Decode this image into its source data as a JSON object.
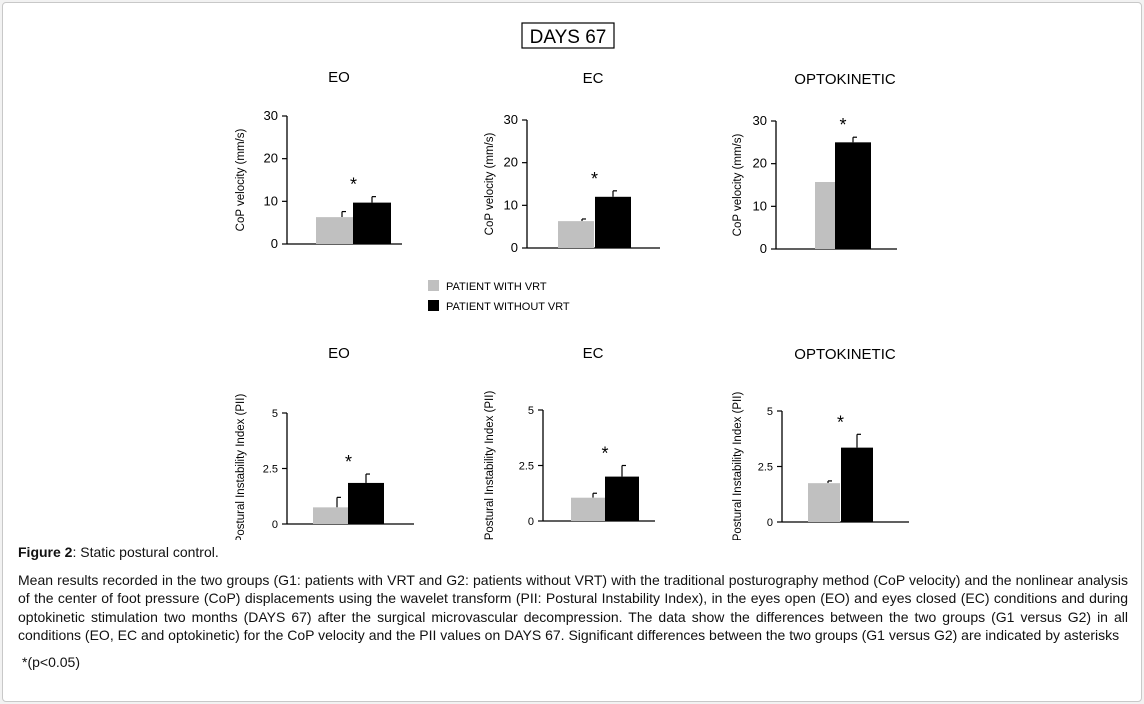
{
  "figure": {
    "header": "DAYS 67",
    "caption_label": "Figure 2",
    "caption_title": ": Static postural control.",
    "caption_body": "Mean results recorded in the two groups (G1: patients with VRT and G2: patients without VRT) with the traditional posturography method (CoP velocity) and the nonlinear analysis of the center of foot pressure (CoP) displacements using the wavelet transform (PII: Postural Instability Index), in the eyes open (EO) and eyes closed (EC) conditions and during optokinetic stimulation two months (DAYS 67) after the surgical microvascular decompression. The data show the differences between the two groups (G1 versus G2) in all conditions (EO, EC and optokinetic) for the CoP velocity and the PII values on DAYS 67. Significant differences between the two groups (G1 versus G2) are indicated by asterisks",
    "caption_note": "*(p<0.05)"
  },
  "legend": [
    {
      "label": "PATIENT WITH VRT",
      "color": "#c0c0c0"
    },
    {
      "label": "PATIENT WITHOUT VRT",
      "color": "#000000"
    }
  ],
  "chart_data": [
    {
      "type": "bar",
      "title": "EO",
      "ylabel": "CoP velocity (mm/s)",
      "ylim": [
        0,
        30
      ],
      "ticks": [
        "0",
        "10",
        "20",
        "30"
      ],
      "series": [
        {
          "name": "PATIENT WITH VRT",
          "values": [
            6.3
          ],
          "errors": [
            1.3
          ]
        },
        {
          "name": "PATIENT WITHOUT VRT",
          "values": [
            9.7
          ],
          "errors": [
            1.4
          ]
        }
      ],
      "annotation": "*"
    },
    {
      "type": "bar",
      "title": "EC",
      "ylabel": "CoP velocity (mm/s)",
      "ylim": [
        0,
        30
      ],
      "ticks": [
        "0",
        "10",
        "20",
        "30"
      ],
      "series": [
        {
          "name": "PATIENT WITH VRT",
          "values": [
            6.3
          ],
          "errors": [
            0.5
          ]
        },
        {
          "name": "PATIENT WITHOUT VRT",
          "values": [
            12.0
          ],
          "errors": [
            1.4
          ]
        }
      ],
      "annotation": "*"
    },
    {
      "type": "bar",
      "title": "OPTOKINETIC",
      "ylabel": "CoP velocity (mm/s)",
      "ylim": [
        0,
        30
      ],
      "ticks": [
        "0",
        "10",
        "20",
        "30"
      ],
      "series": [
        {
          "name": "PATIENT WITH VRT",
          "values": [
            15.7
          ],
          "errors": [
            1.2
          ]
        },
        {
          "name": "PATIENT WITHOUT VRT",
          "values": [
            25.0
          ],
          "errors": [
            1.2
          ]
        }
      ],
      "annotation": "*"
    },
    {
      "type": "bar",
      "title": "EO",
      "ylabel": "Postural Instability Index (PII)",
      "ylim": [
        0,
        5
      ],
      "ticks": [
        "0",
        "2.5",
        "5"
      ],
      "series": [
        {
          "name": "PATIENT WITH VRT",
          "values": [
            0.75
          ],
          "errors": [
            0.45
          ]
        },
        {
          "name": "PATIENT WITHOUT VRT",
          "values": [
            1.85
          ],
          "errors": [
            0.4
          ]
        }
      ],
      "annotation": "*"
    },
    {
      "type": "bar",
      "title": "EC",
      "ylabel": "Postural Instability Index (PII)",
      "ylim": [
        0,
        5
      ],
      "ticks": [
        "0",
        "2.5",
        "5"
      ],
      "series": [
        {
          "name": "PATIENT WITH VRT",
          "values": [
            1.05
          ],
          "errors": [
            0.2
          ]
        },
        {
          "name": "PATIENT WITHOUT VRT",
          "values": [
            2.0
          ],
          "errors": [
            0.5
          ]
        }
      ],
      "annotation": "*"
    },
    {
      "type": "bar",
      "title": "OPTOKINETIC",
      "ylabel": "Postural Instability Index (PII)",
      "ylim": [
        0,
        5
      ],
      "ticks": [
        "0",
        "2.5",
        "5"
      ],
      "series": [
        {
          "name": "PATIENT WITH VRT",
          "values": [
            1.75
          ],
          "errors": [
            0.1
          ]
        },
        {
          "name": "PATIENT WITHOUT VRT",
          "values": [
            3.35
          ],
          "errors": [
            0.6
          ]
        }
      ],
      "annotation": "*"
    }
  ]
}
